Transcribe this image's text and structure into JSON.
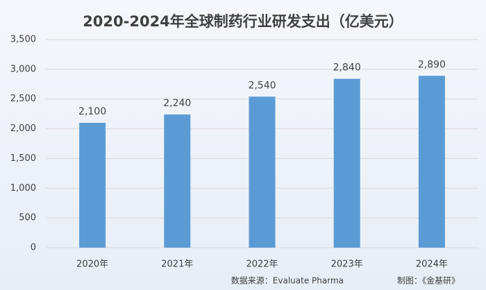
{
  "chart_data": {
    "type": "bar",
    "title": "2020-2024年全球制药行业研发支出（亿美元）",
    "categories": [
      "2020年",
      "2021年",
      "2022年",
      "2023年",
      "2024年"
    ],
    "values": [
      2100,
      2240,
      2540,
      2840,
      2890
    ],
    "value_labels": [
      "2,100",
      "2,240",
      "2,540",
      "2,840",
      "2,890"
    ],
    "color": "#5b9bd5",
    "ylim": [
      0,
      3500
    ],
    "yticks": [
      0,
      500,
      {
        "value": 1000,
        "label": "1,000"
      },
      {
        "value": 1500,
        "label": "1,500"
      },
      {
        "value": 2000,
        "label": "2,000"
      },
      {
        "value": 2500,
        "label": "2,500"
      },
      {
        "value": 3000,
        "label": "3,000"
      },
      {
        "value": 3500,
        "label": "3,500"
      }
    ],
    "grid": true,
    "source": "数据来源：Evaluate Pharma",
    "credit": "制图：《金基研》"
  }
}
